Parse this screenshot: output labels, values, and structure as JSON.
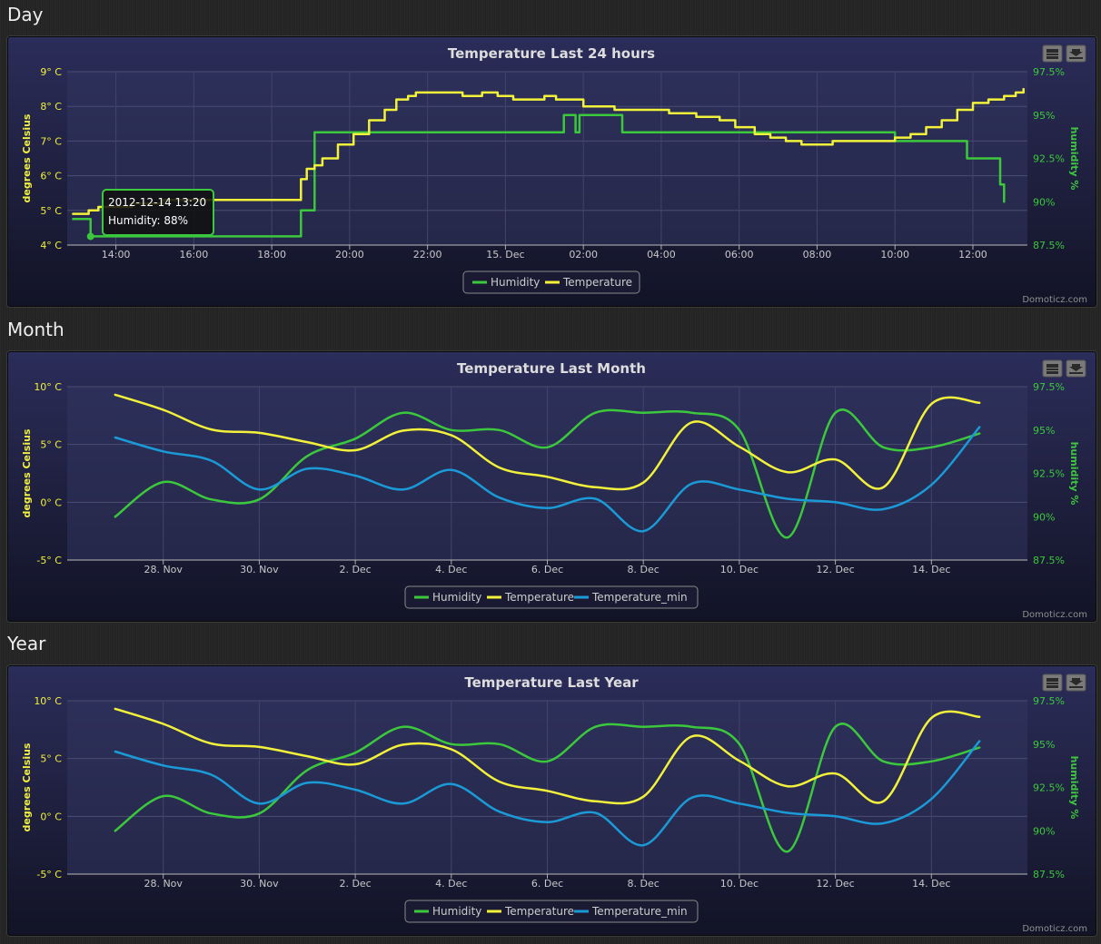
{
  "sections": {
    "day": {
      "heading": "Day"
    },
    "month": {
      "heading": "Month"
    },
    "year": {
      "heading": "Year"
    }
  },
  "credit": "Domoticz.com",
  "icons": {
    "print": "print-icon",
    "export": "download-icon"
  },
  "colors": {
    "humidity": "#3cc83c",
    "temperature": "#f2f23a",
    "temperature_min": "#1a9ad6",
    "left_axis": "#f2f23a",
    "right_axis": "#3cc83c"
  },
  "chart_data": [
    {
      "type": "line",
      "title": "Temperature Last 24 hours",
      "ylabel": "degrees Celsius",
      "ylabel_right": "humidity %",
      "ylim": [
        4,
        9
      ],
      "ylim_right": [
        87.5,
        97.5
      ],
      "y_ticks": [
        "4° C",
        "5° C",
        "6° C",
        "7° C",
        "8° C",
        "9° C"
      ],
      "y_ticks_right": [
        "87.5%",
        "90%",
        "92.5%",
        "95%",
        "97.5%"
      ],
      "x_ticks": [
        "14:00",
        "16:00",
        "18:00",
        "20:00",
        "22:00",
        "15. Dec",
        "02:00",
        "04:00",
        "06:00",
        "08:00",
        "10:00",
        "12:00"
      ],
      "x_range_hours": [
        12.75,
        37.4
      ],
      "series": [
        {
          "name": "Humidity",
          "axis": "right",
          "step": true,
          "x": [
            12.9,
            13.25,
            13.35,
            18.7,
            18.75,
            19.0,
            19.1,
            25.1,
            25.5,
            25.7,
            25.8,
            25.9,
            26.9,
            27.0,
            33.9,
            34.0,
            35.75,
            35.85,
            36.6,
            36.7,
            36.8
          ],
          "y": [
            89,
            89,
            88,
            88,
            89.5,
            89.5,
            94,
            94,
            95,
            95,
            94,
            95,
            95,
            94,
            94,
            93.5,
            93.5,
            92.5,
            92.5,
            91,
            90
          ]
        },
        {
          "name": "Temperature",
          "axis": "left",
          "step": true,
          "x": [
            12.9,
            13.3,
            13.55,
            14.4,
            15.2,
            16.0,
            18.7,
            18.75,
            18.9,
            19.1,
            19.3,
            19.7,
            20.1,
            20.5,
            20.9,
            21.2,
            21.5,
            21.7,
            22.6,
            22.9,
            23.4,
            23.8,
            24.2,
            25.0,
            25.3,
            26.0,
            26.8,
            27.9,
            28.2,
            28.6,
            28.9,
            29.5,
            29.9,
            30.4,
            30.8,
            31.2,
            31.6,
            32.0,
            32.4,
            33.4,
            34.0,
            34.4,
            34.8,
            35.2,
            35.6,
            36.0,
            36.4,
            36.8,
            37.1,
            37.3
          ],
          "y": [
            4.9,
            5.0,
            5.1,
            5.2,
            5.3,
            5.3,
            5.3,
            5.9,
            6.2,
            6.3,
            6.5,
            6.9,
            7.2,
            7.6,
            7.9,
            8.2,
            8.3,
            8.4,
            8.4,
            8.3,
            8.4,
            8.3,
            8.2,
            8.3,
            8.2,
            8.0,
            7.9,
            7.9,
            7.8,
            7.8,
            7.7,
            7.6,
            7.4,
            7.2,
            7.1,
            7.0,
            6.9,
            6.9,
            7.0,
            7.0,
            7.1,
            7.2,
            7.4,
            7.6,
            7.9,
            8.1,
            8.2,
            8.3,
            8.4,
            8.5
          ]
        }
      ],
      "tooltip": {
        "time": "2012-12-14 13:20",
        "text": "Humidity: 88%"
      }
    },
    {
      "type": "line",
      "title": "Temperature Last Month",
      "ylabel": "degrees Celsius",
      "ylabel_right": "humidity %",
      "ylim": [
        -5,
        10
      ],
      "ylim_right": [
        87.5,
        97.5
      ],
      "y_ticks": [
        "-5° C",
        "0° C",
        "5° C",
        "10° C"
      ],
      "y_ticks_right": [
        "87.5%",
        "90%",
        "92.5%",
        "95%",
        "97.5%"
      ],
      "x_ticks": [
        "28. Nov",
        "30. Nov",
        "2. Dec",
        "4. Dec",
        "6. Dec",
        "8. Dec",
        "10. Dec",
        "12. Dec",
        "14. Dec"
      ],
      "x_range_days": [
        26.0,
        46.0
      ],
      "x_days": [
        27,
        28,
        29,
        30,
        31,
        32,
        33,
        34,
        35,
        36,
        37,
        38,
        39,
        40,
        41,
        42,
        43,
        44,
        45
      ],
      "series": [
        {
          "name": "Humidity",
          "axis": "right",
          "values": [
            90,
            92,
            91,
            91,
            93.5,
            94.5,
            96,
            95,
            95,
            94,
            96,
            96,
            96,
            95,
            88.8,
            96,
            94,
            94,
            94.8
          ]
        },
        {
          "name": "Temperature",
          "axis": "left",
          "values": [
            9.3,
            8.0,
            6.3,
            6.0,
            5.2,
            4.5,
            6.2,
            5.8,
            3.0,
            2.2,
            1.3,
            1.7,
            6.9,
            4.8,
            2.6,
            3.7,
            1.3,
            8.5,
            8.6
          ]
        },
        {
          "name": "Temperature_min",
          "axis": "left",
          "values": [
            5.6,
            4.4,
            3.6,
            1.1,
            2.9,
            2.3,
            1.1,
            2.8,
            0.4,
            -0.5,
            0.3,
            -2.5,
            1.6,
            1.1,
            0.3,
            0.0,
            -0.6,
            1.5,
            6.5
          ]
        }
      ]
    },
    {
      "type": "line",
      "title": "Temperature Last Year",
      "ylabel": "degrees Celsius",
      "ylabel_right": "humidity %",
      "ylim": [
        -5,
        10
      ],
      "ylim_right": [
        87.5,
        97.5
      ],
      "y_ticks": [
        "-5° C",
        "0° C",
        "5° C",
        "10° C"
      ],
      "y_ticks_right": [
        "87.5%",
        "90%",
        "92.5%",
        "95%",
        "97.5%"
      ],
      "x_ticks": [
        "28. Nov",
        "30. Nov",
        "2. Dec",
        "4. Dec",
        "6. Dec",
        "8. Dec",
        "10. Dec",
        "12. Dec",
        "14. Dec"
      ],
      "x_range_days": [
        26.0,
        46.0
      ],
      "x_days": [
        27,
        28,
        29,
        30,
        31,
        32,
        33,
        34,
        35,
        36,
        37,
        38,
        39,
        40,
        41,
        42,
        43,
        44,
        45
      ],
      "series": [
        {
          "name": "Humidity",
          "axis": "right",
          "values": [
            90,
            92,
            91,
            91,
            93.5,
            94.5,
            96,
            95,
            95,
            94,
            96,
            96,
            96,
            95,
            88.8,
            96,
            94,
            94,
            94.8
          ]
        },
        {
          "name": "Temperature",
          "axis": "left",
          "values": [
            9.3,
            8.0,
            6.3,
            6.0,
            5.2,
            4.5,
            6.2,
            5.8,
            3.0,
            2.2,
            1.3,
            1.7,
            6.9,
            4.8,
            2.6,
            3.7,
            1.3,
            8.5,
            8.6
          ]
        },
        {
          "name": "Temperature_min",
          "axis": "left",
          "values": [
            5.6,
            4.4,
            3.6,
            1.1,
            2.9,
            2.3,
            1.1,
            2.8,
            0.4,
            -0.5,
            0.3,
            -2.5,
            1.6,
            1.1,
            0.3,
            0.0,
            -0.6,
            1.5,
            6.5
          ]
        }
      ]
    }
  ]
}
